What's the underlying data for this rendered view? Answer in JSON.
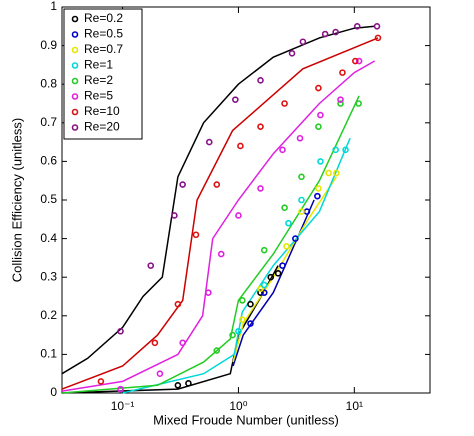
{
  "chart_data": {
    "type": "scatter-fit",
    "xlabel": "Mixed Froude Number (unitless)",
    "ylabel": "Collision Efficiency (unitless)",
    "xscale": "log",
    "xlim": [
      0.03,
      45
    ],
    "ylim": [
      0,
      1
    ],
    "xticks": [
      {
        "value": 0.1,
        "label": "10⁻¹"
      },
      {
        "value": 1,
        "label": "10⁰"
      },
      {
        "value": 10,
        "label": "10¹"
      }
    ],
    "yticks": [
      0,
      0.1,
      0.2,
      0.3,
      0.4,
      0.5,
      0.6,
      0.7,
      0.8,
      0.9,
      1
    ],
    "legend": "upper-left",
    "series": [
      {
        "name": "Re=0.2",
        "color": "#000000",
        "line_color": "#000000",
        "x": [
          0.3,
          0.37,
          1.27,
          1.55,
          1.9,
          2.2
        ],
        "values": [
          0.02,
          0.025,
          0.23,
          0.26,
          0.3,
          0.31
        ],
        "fit_x": [
          0.03,
          0.3,
          0.85,
          1.0,
          1.5,
          2.2
        ],
        "fit_values": [
          0,
          0.01,
          0.05,
          0.15,
          0.24,
          0.33
        ]
      },
      {
        "name": "Re=0.5",
        "color": "#0000cc",
        "line_color": "#0000aa",
        "x": [
          1.27,
          1.67,
          2.4,
          3.1,
          3.9,
          4.8
        ],
        "values": [
          0.18,
          0.26,
          0.33,
          0.4,
          0.47,
          0.51
        ],
        "fit_x": [
          0.9,
          1.1,
          2,
          3,
          4.5
        ],
        "fit_values": [
          0.07,
          0.15,
          0.26,
          0.38,
          0.5
        ]
      },
      {
        "name": "Re=0.7",
        "color": "#e6e600",
        "line_color": "#e6e600",
        "x": [
          1.08,
          1.55,
          2.6,
          3.5,
          4.9,
          6,
          7
        ],
        "values": [
          0.19,
          0.27,
          0.38,
          0.47,
          0.53,
          0.57,
          0.57
        ],
        "fit_x": [
          0.9,
          1.1,
          2,
          4,
          7
        ],
        "fit_values": [
          0.08,
          0.18,
          0.3,
          0.45,
          0.56
        ]
      },
      {
        "name": "Re=1",
        "color": "#00d8d8",
        "line_color": "#00d8d8",
        "x": [
          1,
          1.67,
          2.7,
          3.5,
          5.1,
          6.9,
          8.4
        ],
        "values": [
          0.16,
          0.28,
          0.44,
          0.5,
          0.6,
          0.63,
          0.63
        ],
        "fit_x": [
          0.1,
          0.5,
          0.92,
          1.08,
          2,
          5,
          9.2
        ],
        "fit_values": [
          0,
          0.05,
          0.1,
          0.21,
          0.33,
          0.47,
          0.66
        ]
      },
      {
        "name": "Re=2",
        "color": "#22cc22",
        "line_color": "#22cc22",
        "x": [
          0.65,
          0.89,
          1.08,
          1.67,
          2.5,
          3.5,
          4.9,
          7.6,
          10.9
        ],
        "values": [
          0.11,
          0.15,
          0.24,
          0.37,
          0.48,
          0.56,
          0.69,
          0.75,
          0.75
        ],
        "fit_x": [
          0.03,
          0.2,
          0.5,
          0.85,
          1,
          2,
          5,
          11
        ],
        "fit_values": [
          0,
          0.02,
          0.08,
          0.14,
          0.24,
          0.36,
          0.55,
          0.77
        ]
      },
      {
        "name": "Re=5",
        "color": "#e020e0",
        "line_color": "#e020e0",
        "x": [
          0.096,
          0.21,
          0.33,
          0.55,
          0.71,
          1,
          1.55,
          2.4,
          3.4,
          5.1,
          7.6,
          11
        ],
        "values": [
          0.01,
          0.05,
          0.13,
          0.26,
          0.36,
          0.46,
          0.53,
          0.63,
          0.66,
          0.72,
          0.76,
          0.86
        ],
        "fit_x": [
          0.03,
          0.1,
          0.3,
          0.49,
          0.6,
          1,
          2,
          5,
          10,
          15
        ],
        "fit_values": [
          0.005,
          0.03,
          0.1,
          0.2,
          0.4,
          0.5,
          0.62,
          0.75,
          0.83,
          0.86
        ]
      },
      {
        "name": "Re=10",
        "color": "#dd1111",
        "line_color": "#cc0000",
        "x": [
          0.065,
          0.19,
          0.3,
          0.43,
          0.65,
          1.04,
          1.55,
          2.5,
          4.9,
          7.9,
          10.2,
          16
        ],
        "values": [
          0.03,
          0.13,
          0.23,
          0.41,
          0.54,
          0.64,
          0.69,
          0.75,
          0.79,
          0.83,
          0.86,
          0.92
        ],
        "fit_x": [
          0.03,
          0.1,
          0.2,
          0.33,
          0.44,
          0.89,
          3.6,
          16
        ],
        "fit_values": [
          0.01,
          0.07,
          0.15,
          0.24,
          0.5,
          0.68,
          0.84,
          0.92
        ]
      },
      {
        "name": "Re=20",
        "color": "#881188",
        "line_color": "#000000",
        "x": [
          0.096,
          0.175,
          0.28,
          0.33,
          0.56,
          0.94,
          1.55,
          2.9,
          3.6,
          5.6,
          6.9,
          10.6,
          15.7
        ],
        "values": [
          0.16,
          0.33,
          0.46,
          0.54,
          0.65,
          0.76,
          0.81,
          0.88,
          0.91,
          0.93,
          0.935,
          0.95,
          0.95
        ],
        "fit_x": [
          0.03,
          0.05,
          0.1,
          0.15,
          0.22,
          0.3,
          0.5,
          1,
          2,
          5,
          10,
          15
        ],
        "fit_values": [
          0.05,
          0.09,
          0.17,
          0.25,
          0.3,
          0.56,
          0.7,
          0.8,
          0.87,
          0.92,
          0.945,
          0.95
        ]
      }
    ]
  }
}
